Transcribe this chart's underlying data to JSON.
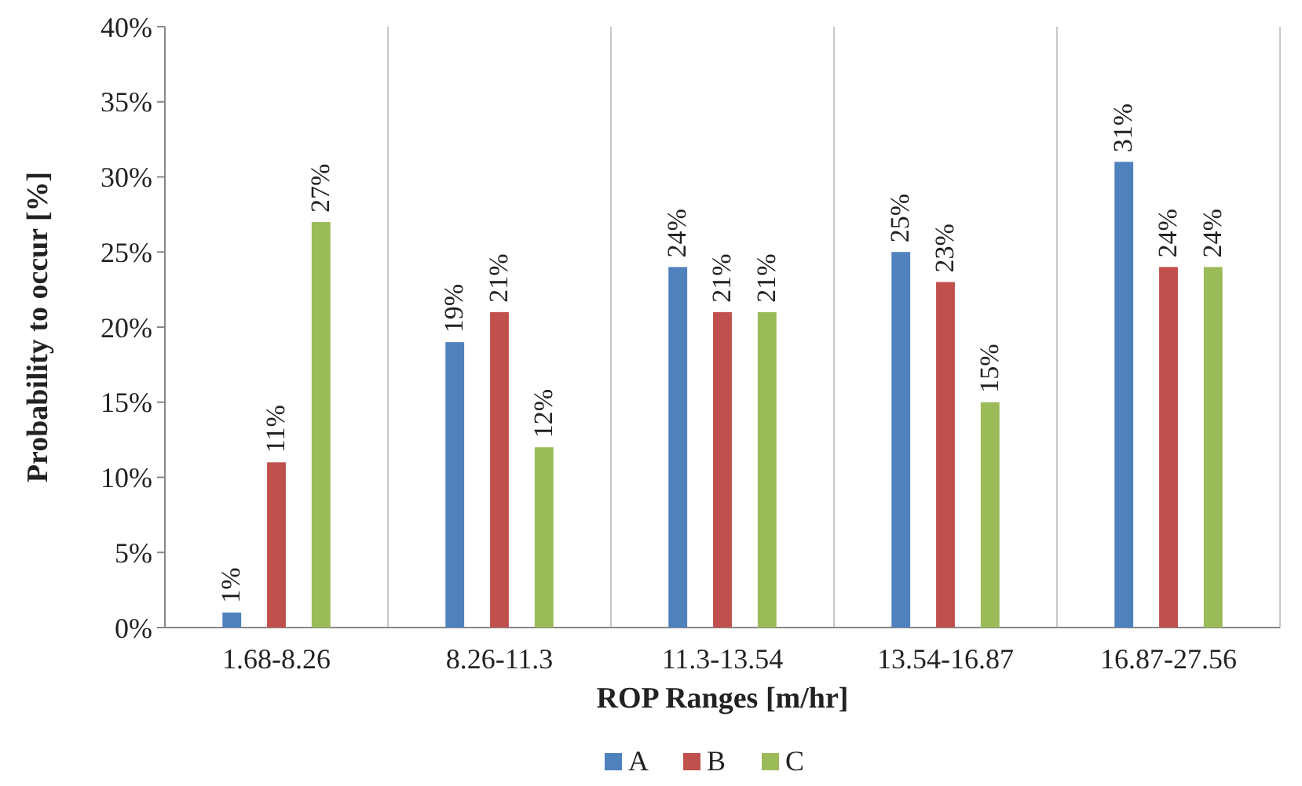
{
  "chart_data": {
    "type": "bar",
    "xlabel": "ROP Ranges [m/hr]",
    "ylabel": "Probability to occur [%]",
    "categories": [
      "1.68-8.26",
      "8.26-11.3",
      "11.3-13.54",
      "13.54-16.87",
      "16.87-27.56"
    ],
    "series": [
      {
        "name": "A",
        "color": "#4f81bd",
        "values": [
          1,
          19,
          24,
          25,
          31
        ],
        "value_labels": [
          "1%",
          "19%",
          "24%",
          "25%",
          "31%"
        ]
      },
      {
        "name": "B",
        "color": "#c0504d",
        "values": [
          11,
          21,
          21,
          23,
          24
        ],
        "value_labels": [
          "11%",
          "21%",
          "21%",
          "23%",
          "24%"
        ]
      },
      {
        "name": "C",
        "color": "#9bbb59",
        "values": [
          27,
          12,
          21,
          15,
          24
        ],
        "value_labels": [
          "27%",
          "12%",
          "21%",
          "15%",
          "24%"
        ]
      }
    ],
    "ylim": [
      0,
      40
    ],
    "yticks": [
      {
        "value": 0,
        "label": "0%"
      },
      {
        "value": 5,
        "label": "5%"
      },
      {
        "value": 10,
        "label": "10%"
      },
      {
        "value": 15,
        "label": "15%"
      },
      {
        "value": 20,
        "label": "20%"
      },
      {
        "value": 25,
        "label": "25%"
      },
      {
        "value": 30,
        "label": "30%"
      },
      {
        "value": 35,
        "label": "35%"
      },
      {
        "value": 40,
        "label": "40%"
      }
    ],
    "grid": "x",
    "legend": "bottom"
  }
}
